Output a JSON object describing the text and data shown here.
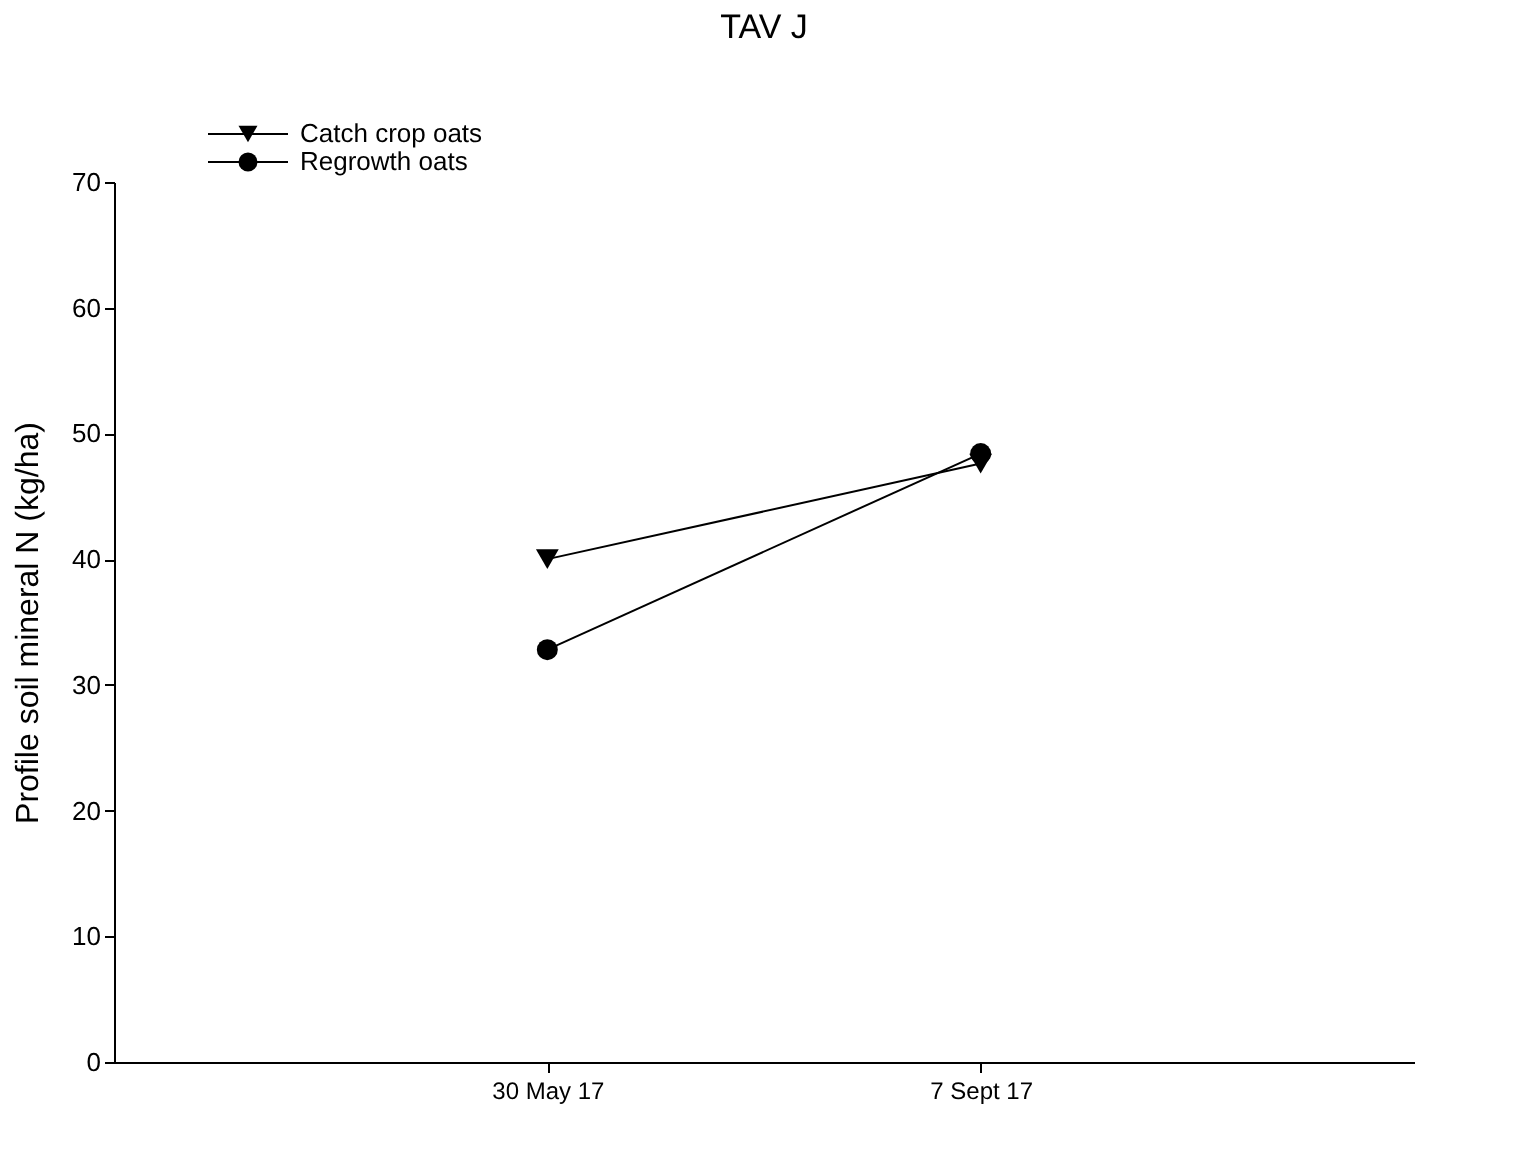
{
  "chart_data": {
    "type": "line",
    "title": "TAV J",
    "ylabel": "Profile soil mineral N (kg/ha)",
    "categories": [
      "30 May 17",
      "7 Sept 17"
    ],
    "series": [
      {
        "name": "Catch crop oats",
        "color": "#000000",
        "marker": "triangle",
        "values": [
          40.0,
          47.6
        ]
      },
      {
        "name": "Regrowth oats",
        "color": "#000000",
        "marker": "circle",
        "values": [
          32.8,
          48.4
        ]
      }
    ],
    "ylim": [
      0,
      70
    ],
    "yticks": [
      0,
      10,
      20,
      30,
      40,
      50,
      60,
      70
    ],
    "grid": false,
    "legend": "top left",
    "line_style": "solid"
  }
}
